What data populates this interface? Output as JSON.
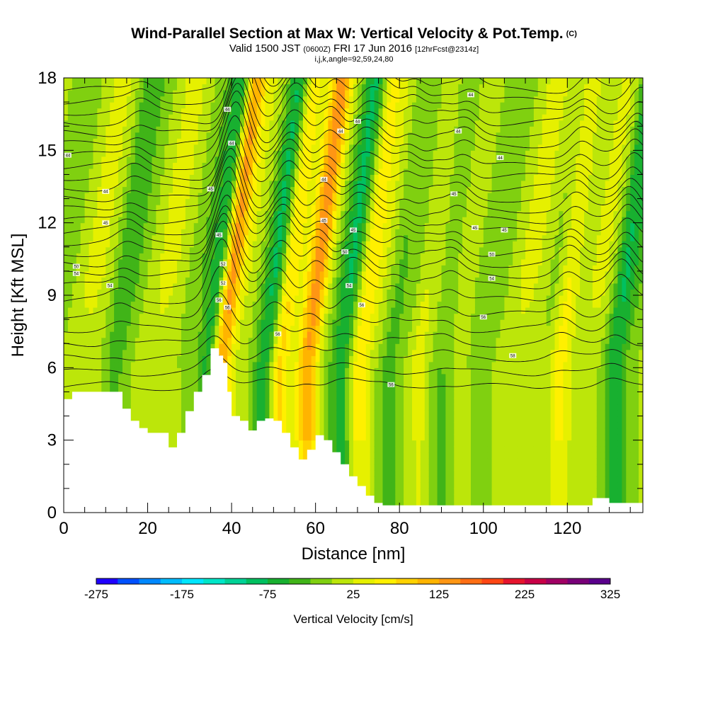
{
  "title": {
    "main": "Wind-Parallel Section at Max W: Vertical Velocity & Pot.Temp.",
    "copyright": "(C)",
    "valid_prefix": "Valid 1500 JST",
    "valid_utc": "(0600Z)",
    "valid_date": "FRI 17 Jun 2016",
    "forecast": "[12hrFcst@2314z]",
    "params": "i,j,k,angle=92,59,24,80"
  },
  "colorbar": {
    "label": "Vertical Velocity [cm/s]",
    "tick_labels": [
      "-275",
      "-175",
      "-75",
      "25",
      "125",
      "225",
      "325"
    ],
    "colors": [
      "#1f00ff",
      "#0050ff",
      "#0088ff",
      "#00bcff",
      "#00e6ff",
      "#00e6c8",
      "#00d296",
      "#00c060",
      "#18b030",
      "#40b418",
      "#80d010",
      "#bce60a",
      "#e6f000",
      "#fff000",
      "#ffd200",
      "#ffb400",
      "#ff9614",
      "#ff6e14",
      "#ff4614",
      "#e6142d",
      "#c80046",
      "#a00064",
      "#780078",
      "#5a008c"
    ]
  },
  "chart_data": {
    "type": "heatmap",
    "xlabel": "Distance [nm]",
    "ylabel": "Height [Kft MSL]",
    "xlim": [
      0,
      138
    ],
    "ylim": [
      0,
      18
    ],
    "x_ticks": [
      0,
      20,
      40,
      60,
      80,
      100,
      120
    ],
    "y_ticks": [
      0,
      3,
      6,
      9,
      12,
      15,
      18
    ],
    "field": "Vertical Velocity [cm/s]",
    "contour_field": "Potential Temperature",
    "updrafts": [
      {
        "x": 37,
        "w": 150
      },
      {
        "x": 51,
        "w": 90
      },
      {
        "x": 58,
        "w": 110
      },
      {
        "x": 70,
        "w": 60
      },
      {
        "x": 84,
        "w": 40
      },
      {
        "x": 118,
        "w": 70
      }
    ],
    "downdrafts": [
      {
        "x": 12,
        "w": -30
      },
      {
        "x": 35,
        "w": -100
      },
      {
        "x": 48,
        "w": -70
      },
      {
        "x": 66,
        "w": -60
      },
      {
        "x": 77,
        "w": -40
      },
      {
        "x": 90,
        "w": -40
      },
      {
        "x": 131,
        "w": -70
      }
    ],
    "terrain": [
      [
        0,
        4.7
      ],
      [
        2,
        5.0
      ],
      [
        8,
        5.0
      ],
      [
        12,
        5.0
      ],
      [
        14,
        4.3
      ],
      [
        16,
        3.8
      ],
      [
        18,
        3.5
      ],
      [
        20,
        3.3
      ],
      [
        23,
        3.3
      ],
      [
        25,
        2.7
      ],
      [
        27,
        3.3
      ],
      [
        29,
        4.2
      ],
      [
        31,
        5.0
      ],
      [
        33,
        5.7
      ],
      [
        35,
        6.8
      ],
      [
        37,
        6.5
      ],
      [
        38,
        6.2
      ],
      [
        39,
        5.0
      ],
      [
        40,
        4.0
      ],
      [
        42,
        3.8
      ],
      [
        44,
        3.4
      ],
      [
        46,
        3.8
      ],
      [
        48,
        3.9
      ],
      [
        50,
        3.8
      ],
      [
        52,
        3.3
      ],
      [
        54,
        2.7
      ],
      [
        56,
        2.2
      ],
      [
        58,
        2.6
      ],
      [
        60,
        3.2
      ],
      [
        62,
        3.0
      ],
      [
        64,
        2.5
      ],
      [
        66,
        2.0
      ],
      [
        68,
        1.5
      ],
      [
        70,
        1.1
      ],
      [
        72,
        0.7
      ],
      [
        74,
        0.4
      ],
      [
        76,
        0.3
      ],
      [
        124,
        0.3
      ],
      [
        126,
        0.6
      ],
      [
        128,
        0.6
      ],
      [
        130,
        0.4
      ],
      [
        138,
        0.4
      ]
    ],
    "contour_labels": [
      {
        "x": 1,
        "y": 14.8,
        "text": "44"
      },
      {
        "x": 10,
        "y": 13.3,
        "text": "44"
      },
      {
        "x": 10,
        "y": 12.0,
        "text": "45"
      },
      {
        "x": 3,
        "y": 10.2,
        "text": "50"
      },
      {
        "x": 3,
        "y": 9.9,
        "text": "54"
      },
      {
        "x": 11,
        "y": 9.4,
        "text": "54"
      },
      {
        "x": 39,
        "y": 16.7,
        "text": "44"
      },
      {
        "x": 40,
        "y": 15.3,
        "text": "44"
      },
      {
        "x": 35,
        "y": 13.4,
        "text": "45"
      },
      {
        "x": 37,
        "y": 11.5,
        "text": "45"
      },
      {
        "x": 38,
        "y": 10.3,
        "text": "52"
      },
      {
        "x": 38,
        "y": 9.5,
        "text": "52"
      },
      {
        "x": 37,
        "y": 8.8,
        "text": "56"
      },
      {
        "x": 39,
        "y": 8.5,
        "text": "56"
      },
      {
        "x": 51,
        "y": 7.4,
        "text": "56"
      },
      {
        "x": 66,
        "y": 15.8,
        "text": "44"
      },
      {
        "x": 70,
        "y": 16.2,
        "text": "44"
      },
      {
        "x": 62,
        "y": 13.8,
        "text": "44"
      },
      {
        "x": 62,
        "y": 12.1,
        "text": "45"
      },
      {
        "x": 69,
        "y": 11.7,
        "text": "45"
      },
      {
        "x": 67,
        "y": 10.8,
        "text": "50"
      },
      {
        "x": 68,
        "y": 9.4,
        "text": "54"
      },
      {
        "x": 71,
        "y": 8.6,
        "text": "56"
      },
      {
        "x": 78,
        "y": 5.3,
        "text": "56"
      },
      {
        "x": 97,
        "y": 17.3,
        "text": "44"
      },
      {
        "x": 94,
        "y": 15.8,
        "text": "44"
      },
      {
        "x": 93,
        "y": 13.2,
        "text": "45"
      },
      {
        "x": 98,
        "y": 11.8,
        "text": "45"
      },
      {
        "x": 104,
        "y": 14.7,
        "text": "44"
      },
      {
        "x": 105,
        "y": 11.7,
        "text": "45"
      },
      {
        "x": 102,
        "y": 10.7,
        "text": "50"
      },
      {
        "x": 102,
        "y": 9.7,
        "text": "54"
      },
      {
        "x": 100,
        "y": 8.1,
        "text": "56"
      },
      {
        "x": 107,
        "y": 6.5,
        "text": "58"
      }
    ]
  }
}
